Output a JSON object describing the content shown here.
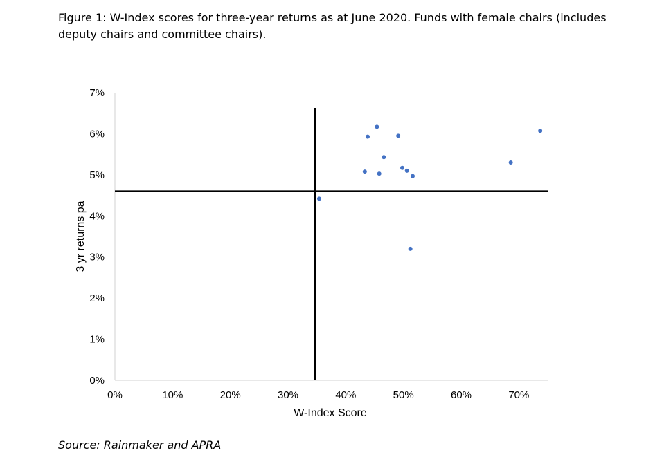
{
  "caption": "Figure 1: W-Index scores for three-year returns as at June 2020. Funds with female chairs (includes deputy chairs and committee chairs).",
  "source": "Source: Rainmaker and APRA",
  "chart_data": {
    "type": "scatter",
    "title": "",
    "xlabel": "W-Index Score",
    "ylabel": "3 yr returns pa",
    "xlim": [
      0,
      75
    ],
    "ylim": [
      0,
      7
    ],
    "xticks": [
      0,
      10,
      20,
      30,
      40,
      50,
      60,
      70
    ],
    "yticks": [
      0,
      1,
      2,
      3,
      4,
      5,
      6,
      7
    ],
    "xtick_labels": [
      "0%",
      "10%",
      "20%",
      "30%",
      "40%",
      "50%",
      "60%",
      "70%"
    ],
    "ytick_labels": [
      "0%",
      "1%",
      "2%",
      "3%",
      "4%",
      "5%",
      "6%",
      "7%"
    ],
    "grid": false,
    "reference_lines": {
      "x": 34.7,
      "y": 4.6
    },
    "point_color": "#4472C4",
    "series": [
      {
        "name": "Funds with female chairs",
        "x": [
          35.4,
          43.3,
          43.8,
          45.4,
          45.8,
          46.6,
          49.1,
          49.8,
          50.6,
          51.2,
          51.6,
          68.6,
          73.7
        ],
        "y": [
          4.42,
          5.08,
          5.93,
          6.17,
          5.03,
          5.43,
          5.95,
          5.17,
          5.1,
          3.2,
          4.97,
          5.3,
          6.07
        ]
      }
    ]
  }
}
